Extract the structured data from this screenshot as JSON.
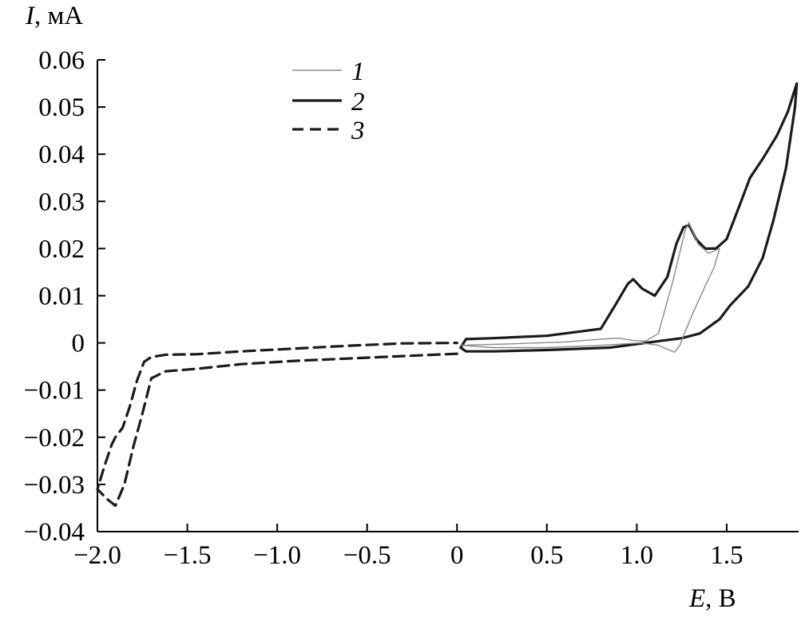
{
  "chart_data": {
    "type": "line",
    "ylabel_symbol": "I",
    "ylabel_unit": ", мА",
    "xlabel_symbol": "E",
    "xlabel_unit": ", В",
    "xlim": [
      -2.0,
      1.9
    ],
    "ylim": [
      -0.04,
      0.06
    ],
    "x_ticks": [
      -2.0,
      -1.5,
      -1.0,
      -0.5,
      0,
      0.5,
      1.0,
      1.5
    ],
    "x_tick_labels": [
      "−2.0",
      "−1.5",
      "−1.0",
      "−0.5",
      "0",
      "0.5",
      "1.0",
      "1.5"
    ],
    "y_ticks": [
      0.06,
      0.05,
      0.04,
      0.03,
      0.02,
      0.01,
      0,
      -0.01,
      -0.02,
      -0.03,
      -0.04
    ],
    "y_tick_labels": [
      "0.06",
      "0.05",
      "0.04",
      "0.03",
      "0.02",
      "0.01",
      "0",
      "−0.01",
      "−0.02",
      "−0.03",
      "−0.04"
    ],
    "grid": false,
    "legend_position": "top-left-center",
    "series": [
      {
        "name": "1",
        "style": "thin-solid",
        "color": "#8a8a8a",
        "x": [
          0.02,
          0.3,
          0.6,
          0.8,
          0.9,
          0.98,
          1.05,
          1.12,
          1.2,
          1.27,
          1.29,
          1.34,
          1.4,
          1.46,
          1.43,
          1.38,
          1.32,
          1.27,
          1.24,
          1.21,
          1.18,
          1.12,
          1.02,
          0.8,
          0.5,
          0.2,
          0.02
        ],
        "y": [
          -0.0005,
          -0.0002,
          0.0002,
          0.0008,
          0.001,
          0.0005,
          0.0004,
          0.002,
          0.013,
          0.024,
          0.0255,
          0.021,
          0.019,
          0.02,
          0.016,
          0.012,
          0.007,
          0.0025,
          -0.0005,
          -0.002,
          -0.0015,
          -0.0005,
          0.0,
          -0.0005,
          -0.001,
          -0.001,
          -0.0005
        ]
      },
      {
        "name": "2",
        "style": "thick-solid",
        "color": "#1a1a1a",
        "x": [
          0.05,
          0.2,
          0.5,
          0.8,
          0.88,
          0.95,
          0.98,
          1.03,
          1.1,
          1.17,
          1.22,
          1.26,
          1.29,
          1.33,
          1.38,
          1.44,
          1.5,
          1.58,
          1.63,
          1.7,
          1.78,
          1.84,
          1.89,
          1.88,
          1.83,
          1.76,
          1.7,
          1.62,
          1.52,
          1.46,
          1.35,
          1.25,
          1.15,
          1.05,
          0.85,
          0.5,
          0.2,
          0.05,
          0.02,
          0.05
        ],
        "y": [
          0.0008,
          0.001,
          0.0015,
          0.003,
          0.008,
          0.0125,
          0.0135,
          0.0115,
          0.01,
          0.014,
          0.021,
          0.0245,
          0.025,
          0.022,
          0.02,
          0.02,
          0.022,
          0.03,
          0.035,
          0.039,
          0.044,
          0.049,
          0.055,
          0.05,
          0.037,
          0.026,
          0.018,
          0.012,
          0.008,
          0.005,
          0.002,
          0.001,
          0.0005,
          0.0,
          -0.001,
          -0.0015,
          -0.0018,
          -0.0018,
          -0.001,
          0.0008
        ]
      },
      {
        "name": "3",
        "style": "dashed",
        "color": "#1a1a1a",
        "x": [
          0.0,
          -0.3,
          -0.6,
          -0.9,
          -1.2,
          -1.45,
          -1.62,
          -1.7,
          -1.75,
          -1.8,
          -1.85,
          -1.9,
          -1.95,
          -2.0,
          -1.96,
          -1.92,
          -1.9,
          -1.86,
          -1.82,
          -1.78,
          -1.74,
          -1.7,
          -1.62,
          -1.45,
          -1.2,
          -0.9,
          -0.6,
          -0.3,
          0.0
        ],
        "y": [
          -0.0023,
          -0.0028,
          -0.0033,
          -0.0038,
          -0.0045,
          -0.0055,
          -0.006,
          -0.0075,
          -0.015,
          -0.022,
          -0.03,
          -0.0345,
          -0.033,
          -0.031,
          -0.026,
          -0.0215,
          -0.02,
          -0.018,
          -0.0135,
          -0.008,
          -0.004,
          -0.003,
          -0.0025,
          -0.0024,
          -0.0018,
          -0.0012,
          -0.0006,
          -0.0001,
          0.0
        ]
      }
    ]
  }
}
